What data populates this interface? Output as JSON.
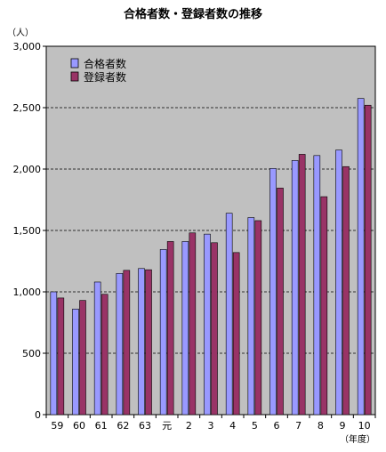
{
  "chart_data": {
    "type": "bar",
    "title": "合格者数・登録者数の推移",
    "ylabel": "（人）",
    "xlabel": "（年度）",
    "categories": [
      "59",
      "60",
      "61",
      "62",
      "63",
      "元",
      "2",
      "3",
      "4",
      "5",
      "6",
      "7",
      "8",
      "9",
      "10"
    ],
    "series": [
      {
        "name": "合格者数",
        "color": "#9999ff",
        "values": [
          1000,
          860,
          1080,
          1150,
          1190,
          1345,
          1410,
          1470,
          1640,
          1605,
          2005,
          2070,
          2110,
          2155,
          2575
        ]
      },
      {
        "name": "登録者数",
        "color": "#993366",
        "values": [
          950,
          930,
          980,
          1175,
          1180,
          1410,
          1480,
          1400,
          1320,
          1580,
          1845,
          2120,
          1775,
          2020,
          2520
        ]
      }
    ],
    "ylim": [
      0,
      3000
    ],
    "yticks": [
      0,
      500,
      1000,
      1500,
      2000,
      2500,
      3000
    ],
    "ytick_labels": [
      "0",
      "500",
      "1,000",
      "1,500",
      "2,000",
      "2,500",
      "3,000"
    ],
    "grid": true,
    "legend_position": "top-left",
    "plot_background": "#c0c0c0"
  }
}
